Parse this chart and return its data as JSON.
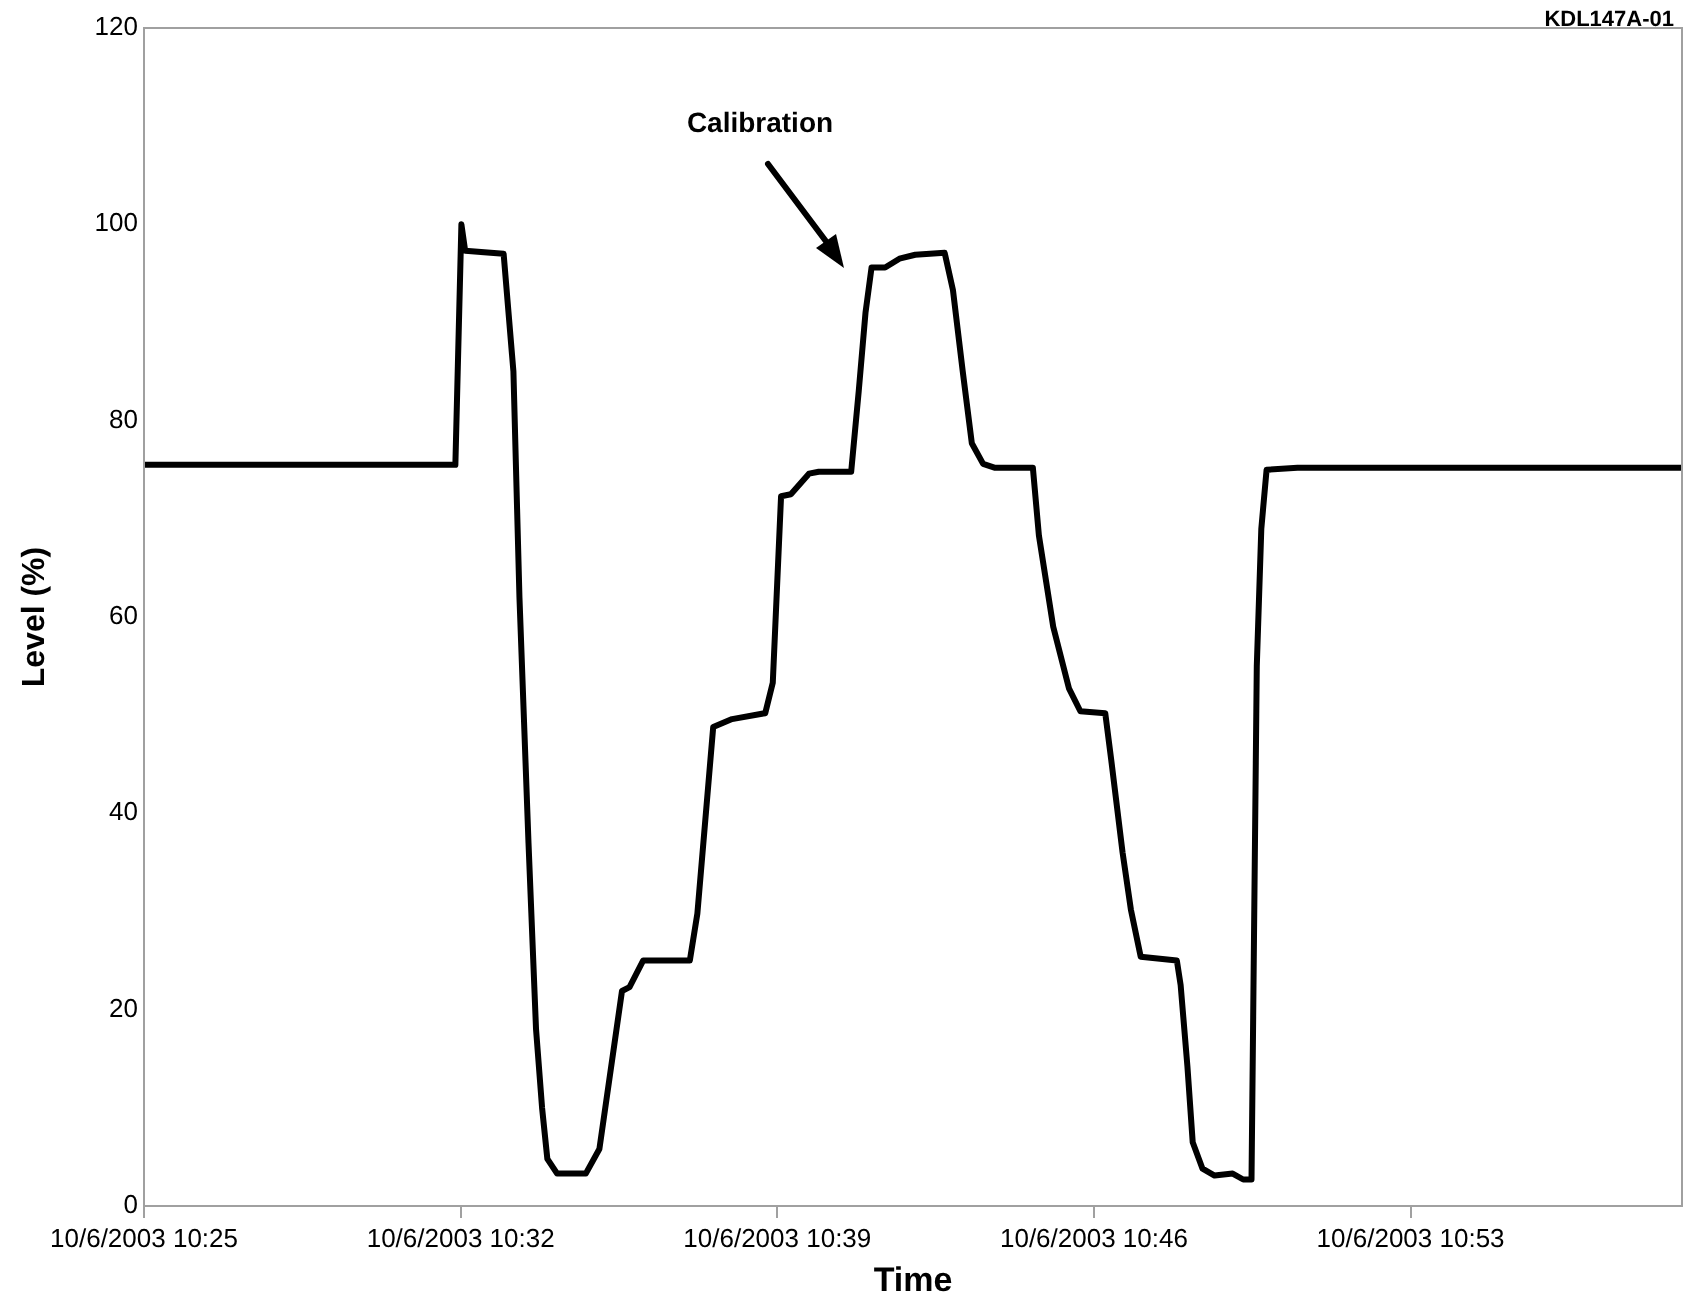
{
  "chart_data": {
    "type": "line",
    "xlabel": "Time",
    "ylabel": "Level (%)",
    "annotations": [
      "Calibration",
      "KDL147A-01"
    ],
    "xlim": [
      "2003-10-06T10:25",
      "2003-10-06T10:59"
    ],
    "xticks": [
      {
        "value": "2003-10-06T10:25",
        "label": "10/6/2003 10:25"
      },
      {
        "value": "2003-10-06T10:32",
        "label": "10/6/2003 10:32"
      },
      {
        "value": "2003-10-06T10:39",
        "label": "10/6/2003 10:39"
      },
      {
        "value": "2003-10-06T10:46",
        "label": "10/6/2003 10:46"
      },
      {
        "value": "2003-10-06T10:53",
        "label": "10/6/2003 10:53"
      }
    ],
    "ylim": [
      0,
      120
    ],
    "yticks": [
      0,
      20,
      40,
      60,
      80,
      100,
      120
    ],
    "grid": false,
    "legend": false,
    "marker": "none",
    "line_style": "solid",
    "series": [
      {
        "color": "#000000",
        "x": [
          "2003-10-06T10:25:00",
          "2003-10-06T10:31:53",
          "2003-10-06T10:32:01",
          "2003-10-06T10:32:06",
          "2003-10-06T10:32:57",
          "2003-10-06T10:33:10",
          "2003-10-06T10:33:18",
          "2003-10-06T10:33:30",
          "2003-10-06T10:33:40",
          "2003-10-06T10:33:48",
          "2003-10-06T10:33:55",
          "2003-10-06T10:34:08",
          "2003-10-06T10:34:46",
          "2003-10-06T10:35:04",
          "2003-10-06T10:35:34",
          "2003-10-06T10:35:44",
          "2003-10-06T10:36:02",
          "2003-10-06T10:37:04",
          "2003-10-06T10:37:14",
          "2003-10-06T10:37:35",
          "2003-10-06T10:38:00",
          "2003-10-06T10:38:44",
          "2003-10-06T10:38:54",
          "2003-10-06T10:39:05",
          "2003-10-06T10:39:18",
          "2003-10-06T10:39:42",
          "2003-10-06T10:39:55",
          "2003-10-06T10:40:38",
          "2003-10-06T10:40:48",
          "2003-10-06T10:40:57",
          "2003-10-06T10:41:05",
          "2003-10-06T10:41:23",
          "2003-10-06T10:41:42",
          "2003-10-06T10:42:03",
          "2003-10-06T10:42:42",
          "2003-10-06T10:42:53",
          "2003-10-06T10:43:06",
          "2003-10-06T10:43:18",
          "2003-10-06T10:43:33",
          "2003-10-06T10:43:49",
          "2003-10-06T10:44:39",
          "2003-10-06T10:44:47",
          "2003-10-06T10:45:06",
          "2003-10-06T10:45:27",
          "2003-10-06T10:45:42",
          "2003-10-06T10:46:15",
          "2003-10-06T10:46:23",
          "2003-10-06T10:46:38",
          "2003-10-06T10:46:49",
          "2003-10-06T10:47:02",
          "2003-10-06T10:47:50",
          "2003-10-06T10:47:55",
          "2003-10-06T10:48:04",
          "2003-10-06T10:48:11",
          "2003-10-06T10:48:24",
          "2003-10-06T10:48:40",
          "2003-10-06T10:49:04",
          "2003-10-06T10:49:18",
          "2003-10-06T10:49:29",
          "2003-10-06T10:49:36",
          "2003-10-06T10:49:42",
          "2003-10-06T10:49:49",
          "2003-10-06T10:50:30",
          "2003-10-06T10:59:00"
        ],
        "values": [
          75.5,
          75.5,
          100,
          97.3,
          97,
          85,
          62,
          37,
          18,
          10,
          4.8,
          3.3,
          3.3,
          5.8,
          21.9,
          22.3,
          25,
          25,
          29.8,
          48.8,
          49.6,
          50.2,
          53.3,
          72.3,
          72.5,
          74.6,
          74.8,
          74.8,
          83,
          91,
          95.6,
          95.6,
          96.5,
          96.9,
          97.1,
          93.3,
          85,
          77.7,
          75.6,
          75.2,
          75.2,
          68.3,
          59,
          52.7,
          50.4,
          50.2,
          45.4,
          36,
          30.2,
          25.4,
          25,
          22.5,
          14.2,
          6.5,
          3.8,
          3.1,
          3.3,
          2.7,
          2.7,
          55,
          69,
          75,
          75.2,
          75.2
        ]
      }
    ]
  }
}
